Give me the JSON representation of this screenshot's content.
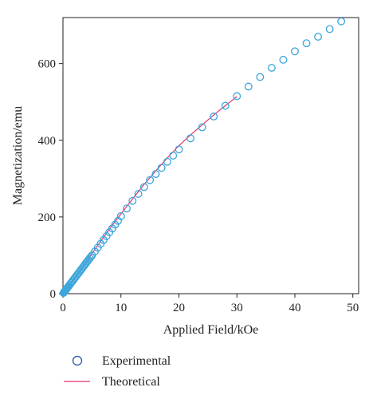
{
  "chart_data": {
    "type": "scatter",
    "xlabel": "Applied Field/kOe",
    "ylabel": "Magnetization/emu",
    "xlim": [
      0,
      51
    ],
    "ylim": [
      0,
      720
    ],
    "xticks": [
      0,
      10,
      20,
      30,
      40,
      50
    ],
    "yticks": [
      0,
      200,
      400,
      600
    ],
    "grid": false,
    "legend_position": "bottom-left",
    "series": [
      {
        "name": "Experimental",
        "kind": "scatter",
        "marker": "open-circle",
        "color": "#3aa6dc",
        "x": [
          0.1,
          0.2,
          0.3,
          0.4,
          0.5,
          0.6,
          0.7,
          0.8,
          0.9,
          1.0,
          1.2,
          1.4,
          1.6,
          1.8,
          2.0,
          2.2,
          2.4,
          2.6,
          2.8,
          3.0,
          3.2,
          3.4,
          3.6,
          3.8,
          4.0,
          4.2,
          4.4,
          4.6,
          4.8,
          5.0,
          5.5,
          6.0,
          6.5,
          7.0,
          7.5,
          8.0,
          8.5,
          9.0,
          9.5,
          10,
          11,
          12,
          13,
          14,
          15,
          16,
          17,
          18,
          19,
          20,
          22,
          24,
          26,
          28,
          30,
          32,
          34,
          36,
          38,
          40,
          42,
          44,
          46,
          48
        ],
        "y": [
          2,
          4,
          6,
          8,
          10,
          12,
          14,
          16,
          18,
          20,
          24,
          28,
          32,
          36,
          40,
          44,
          48,
          52,
          56,
          60,
          64,
          68,
          72,
          76,
          80,
          84,
          88,
          92,
          96,
          100,
          110,
          120,
          130,
          140,
          150,
          160,
          170,
          180,
          190,
          202,
          222,
          242,
          260,
          278,
          296,
          312,
          328,
          344,
          360,
          376,
          405,
          434,
          462,
          490,
          515,
          540,
          565,
          589,
          610,
          632,
          653,
          670,
          690,
          710
        ]
      },
      {
        "name": "Theoretical",
        "kind": "line",
        "color": "#e8326e",
        "x": [
          0,
          2,
          4,
          6,
          8,
          10,
          12,
          14,
          16,
          18,
          20,
          22,
          24,
          26,
          28,
          30
        ],
        "y": [
          0,
          42,
          84,
          126,
          168,
          208,
          247,
          285,
          320,
          354,
          386,
          414,
          440,
          466,
          490,
          514
        ]
      }
    ]
  }
}
